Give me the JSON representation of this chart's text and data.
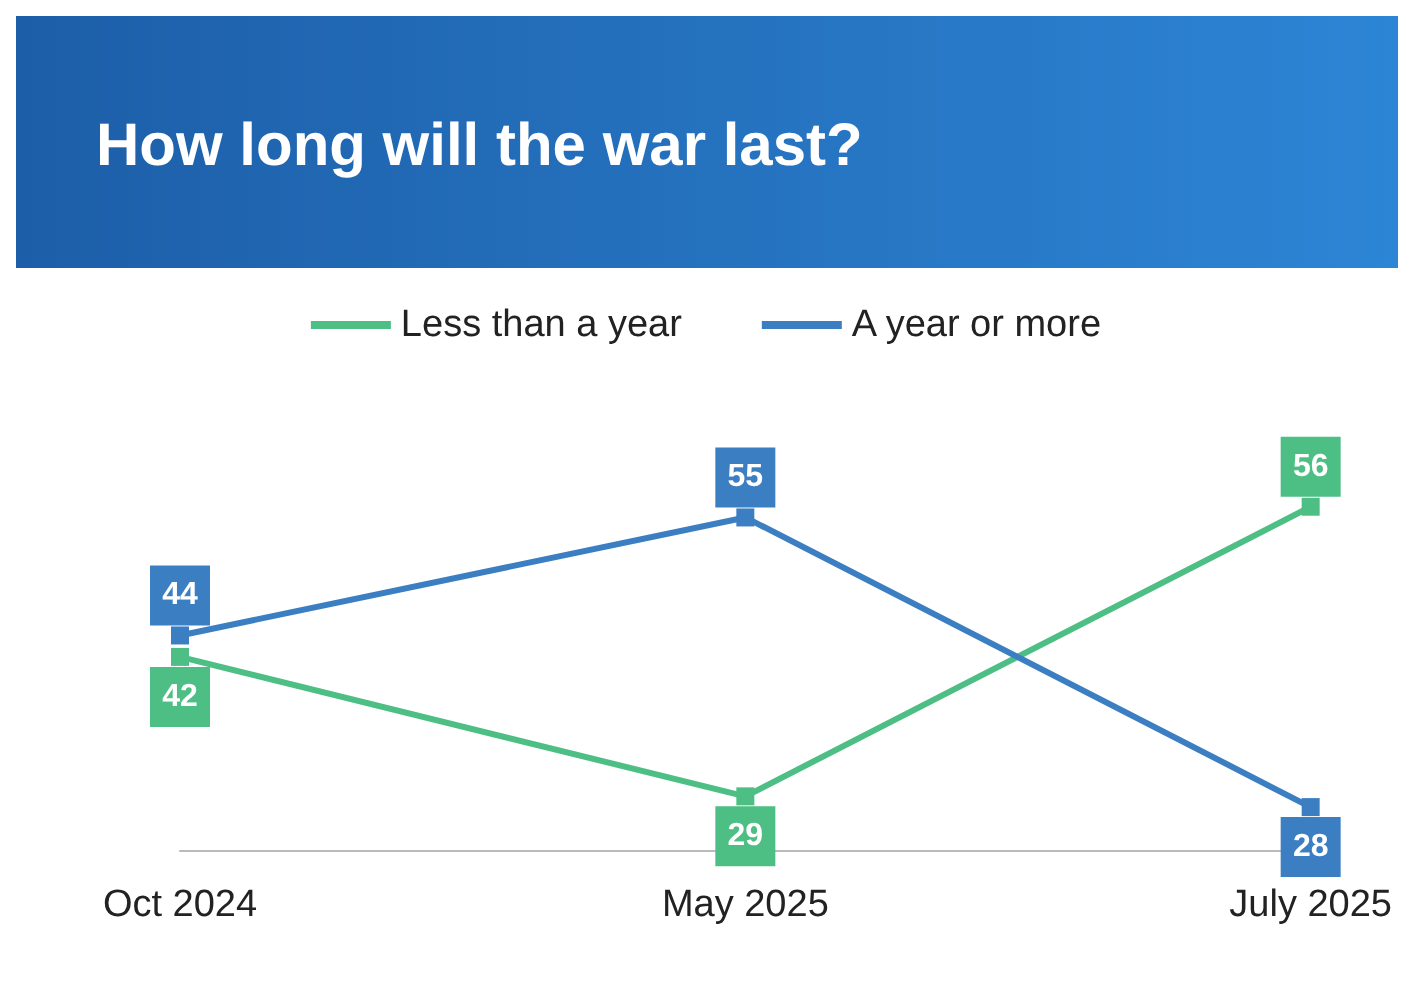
{
  "chart_data": {
    "type": "line",
    "title": "How long will the war last?",
    "categories": [
      "Oct 2024",
      "May 2025",
      "July 2025"
    ],
    "series": [
      {
        "name": "Less than a year",
        "color": "#4dbf85",
        "values": [
          42,
          29,
          56
        ]
      },
      {
        "name": "A year or more",
        "color": "#3b7fc2",
        "values": [
          44,
          55,
          28
        ]
      }
    ],
    "data_labels": true,
    "marker": "square",
    "line_style": "solid",
    "legend": "top",
    "grid": false
  }
}
